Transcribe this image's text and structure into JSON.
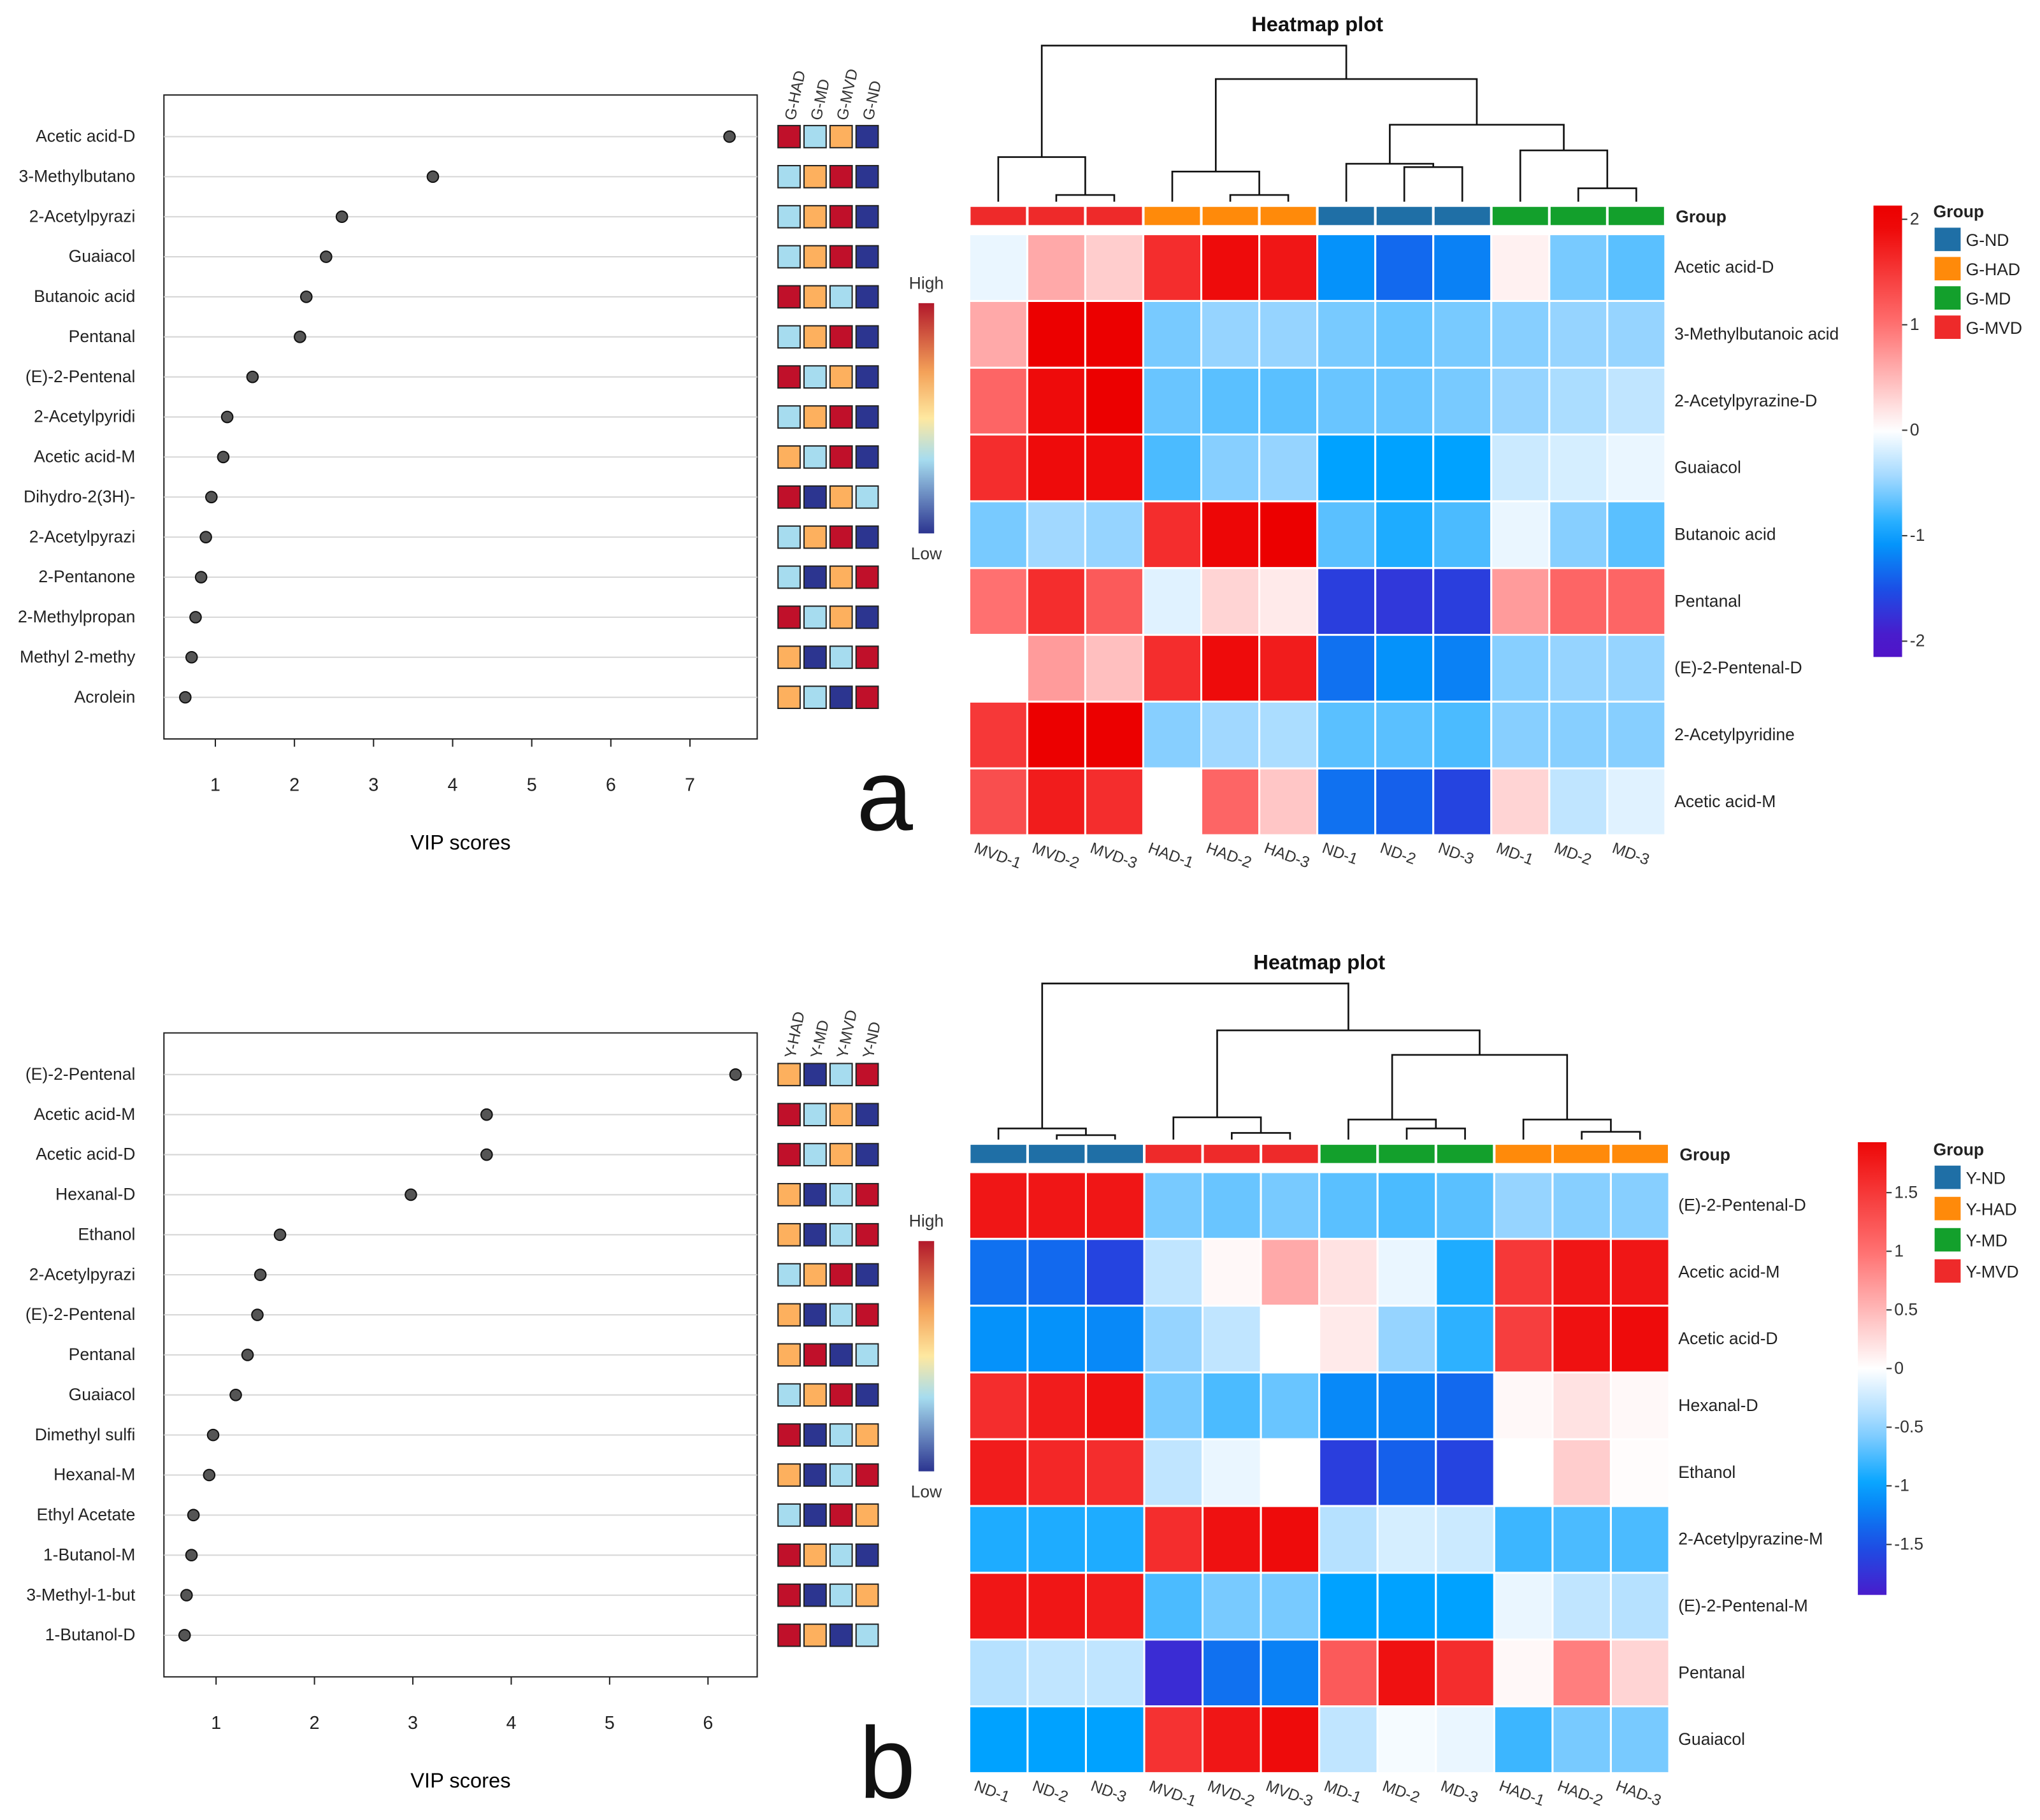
{
  "panel_labels": [
    "a",
    "b"
  ],
  "rank_colors": {
    "4": "#c0102a",
    "3": "#fdb05e",
    "2": "#a6dcef",
    "1": "#2c3590"
  },
  "chart_data": [
    {
      "type": "scatter",
      "name": "vip-a",
      "xlabel": "VIP scores",
      "xticks": [
        "1",
        "2",
        "3",
        "4",
        "5",
        "6",
        "7"
      ],
      "xlim": [
        0.35,
        7.85
      ],
      "features": [
        "Acetic acid-D",
        "3-Methylbutano",
        "2-Acetylpyrazi",
        "Guaiacol",
        "Butanoic acid",
        "Pentanal",
        "(E)-2-Pentenal",
        "2-Acetylpyridi",
        "Acetic acid-M",
        "Dihydro-2(3H)-",
        "2-Acetylpyrazi",
        "2-Pentanone",
        "2-Methylpropan",
        "Methyl 2-methy",
        "Acrolein"
      ],
      "values": [
        7.5,
        3.75,
        2.6,
        2.4,
        2.15,
        2.07,
        1.47,
        1.15,
        1.1,
        0.95,
        0.88,
        0.82,
        0.75,
        0.7,
        0.62
      ],
      "group_headers": [
        "G-HAD",
        "G-MD",
        "G-MVD",
        "G-ND"
      ],
      "group_ranks": [
        [
          4,
          2,
          3,
          1
        ],
        [
          2,
          3,
          4,
          1
        ],
        [
          2,
          3,
          4,
          1
        ],
        [
          2,
          3,
          4,
          1
        ],
        [
          4,
          3,
          2,
          1
        ],
        [
          2,
          3,
          4,
          1
        ],
        [
          4,
          2,
          3,
          1
        ],
        [
          2,
          3,
          4,
          1
        ],
        [
          3,
          2,
          4,
          1
        ],
        [
          4,
          1,
          3,
          2
        ],
        [
          2,
          3,
          4,
          1
        ],
        [
          2,
          1,
          3,
          4
        ],
        [
          4,
          2,
          3,
          1
        ],
        [
          3,
          1,
          2,
          4
        ],
        [
          3,
          2,
          1,
          4
        ]
      ],
      "rank_legend": {
        "high": "High",
        "low": "Low"
      }
    },
    {
      "type": "heatmap",
      "name": "heatmap-a",
      "title": "Heatmap plot",
      "columns": [
        "MVD-1",
        "MVD-2",
        "MVD-3",
        "HAD-1",
        "HAD-2",
        "HAD-3",
        "ND-1",
        "ND-2",
        "ND-3",
        "MD-1",
        "MD-2",
        "MD-3"
      ],
      "column_groups": [
        "G-MVD",
        "G-MVD",
        "G-MVD",
        "G-HAD",
        "G-HAD",
        "G-HAD",
        "G-ND",
        "G-ND",
        "G-ND",
        "G-MD",
        "G-MD",
        "G-MD"
      ],
      "group_bar_label": "Group",
      "rows": [
        "Acetic acid-D",
        "3-Methylbutanoic acid",
        "2-Acetylpyrazine-D",
        "Guaiacol",
        "Butanoic acid",
        "Pentanal",
        "(E)-2-Pentenal-D",
        "2-Acetylpyridine",
        "Acetic acid-M"
      ],
      "values": [
        [
          -0.1,
          0.6,
          0.35,
          1.6,
          1.9,
          1.8,
          -1.1,
          -1.35,
          -1.2,
          0.1,
          -0.6,
          -0.7
        ],
        [
          0.6,
          2.0,
          2.0,
          -0.6,
          -0.5,
          -0.5,
          -0.6,
          -0.65,
          -0.6,
          -0.55,
          -0.5,
          -0.5
        ],
        [
          1.1,
          1.9,
          2.0,
          -0.65,
          -0.7,
          -0.7,
          -0.65,
          -0.65,
          -0.6,
          -0.5,
          -0.4,
          -0.3
        ],
        [
          1.6,
          1.9,
          1.9,
          -0.75,
          -0.55,
          -0.5,
          -1.0,
          -1.0,
          -1.0,
          -0.25,
          -0.2,
          -0.1
        ],
        [
          -0.6,
          -0.45,
          -0.5,
          1.6,
          1.95,
          2.0,
          -0.7,
          -0.9,
          -0.75,
          -0.1,
          -0.55,
          -0.7
        ],
        [
          1.0,
          1.6,
          1.2,
          -0.15,
          0.3,
          0.15,
          -1.65,
          -1.7,
          -1.65,
          0.7,
          1.1,
          1.1
        ],
        [
          0.0,
          0.7,
          0.45,
          1.6,
          1.9,
          1.75,
          -1.3,
          -1.1,
          -1.2,
          -0.55,
          -0.5,
          -0.5
        ],
        [
          1.5,
          2.0,
          2.0,
          -0.55,
          -0.45,
          -0.4,
          -0.7,
          -0.7,
          -0.75,
          -0.55,
          -0.55,
          -0.55
        ],
        [
          1.3,
          1.75,
          1.6,
          0.0,
          1.1,
          0.4,
          -1.3,
          -1.4,
          -1.6,
          0.3,
          -0.3,
          -0.15
        ]
      ],
      "colorbar_range": [
        -2.15,
        2.13
      ],
      "colorbar_ticks": [
        {
          "value": 2,
          "label": "2"
        },
        {
          "value": 1,
          "label": "1"
        },
        {
          "value": 0,
          "label": "0"
        },
        {
          "value": -1,
          "label": "-1"
        },
        {
          "value": -2,
          "label": "-2"
        }
      ],
      "group_legend": {
        "title": "Group",
        "items": [
          {
            "label": "G-ND",
            "color": "#1f6fa6"
          },
          {
            "label": "G-HAD",
            "color": "#ff8a0a"
          },
          {
            "label": "G-MD",
            "color": "#13a02c"
          },
          {
            "label": "G-MVD",
            "color": "#ee2a2a"
          }
        ]
      },
      "col_dendrogram": {
        "h": 7,
        "c": [
          {
            "h": 2.0,
            "c": [
              0,
              {
                "h": 0.3,
                "c": [
                  1,
                  2
                ]
              }
            ]
          },
          {
            "h": 5.5,
            "c": [
              {
                "h": 1.35,
                "c": [
                  3,
                  {
                    "h": 0.3,
                    "c": [
                      4,
                      5
                    ]
                  }
                ]
              },
              {
                "h": 3.45,
                "c": [
                  {
                    "h": 1.7,
                    "c": [
                      6,
                      {
                        "h": 1.55,
                        "c": [
                          7,
                          8
                        ]
                      }
                    ]
                  },
                  {
                    "h": 2.3,
                    "c": [
                      9,
                      {
                        "h": 0.6,
                        "c": [
                          10,
                          11
                        ]
                      }
                    ]
                  }
                ]
              }
            ]
          }
        ]
      }
    },
    {
      "type": "scatter",
      "name": "vip-b",
      "xlabel": "VIP scores",
      "xticks": [
        "1",
        "2",
        "3",
        "4",
        "5",
        "6"
      ],
      "xlim": [
        0.47,
        6.5
      ],
      "features": [
        "(E)-2-Pentenal",
        "Acetic acid-M",
        "Acetic acid-D",
        "Hexanal-D",
        "Ethanol",
        "2-Acetylpyrazi",
        "(E)-2-Pentenal",
        "Pentanal",
        "Guaiacol",
        "Dimethyl sulfi",
        "Hexanal-M",
        "Ethyl Acetate",
        "1-Butanol-M",
        "3-Methyl-1-but",
        "1-Butanol-D"
      ],
      "values": [
        6.28,
        3.75,
        3.75,
        2.98,
        1.65,
        1.45,
        1.42,
        1.32,
        1.2,
        0.97,
        0.93,
        0.77,
        0.75,
        0.7,
        0.68
      ],
      "group_headers": [
        "Y-HAD",
        "Y-MD",
        "Y-MVD",
        "Y-ND"
      ],
      "group_ranks": [
        [
          3,
          1,
          2,
          4
        ],
        [
          4,
          2,
          3,
          1
        ],
        [
          4,
          2,
          3,
          1
        ],
        [
          3,
          1,
          2,
          4
        ],
        [
          3,
          1,
          2,
          4
        ],
        [
          2,
          3,
          4,
          1
        ],
        [
          3,
          1,
          2,
          4
        ],
        [
          3,
          4,
          1,
          2
        ],
        [
          2,
          3,
          4,
          1
        ],
        [
          4,
          1,
          2,
          3
        ],
        [
          3,
          1,
          2,
          4
        ],
        [
          2,
          1,
          4,
          3
        ],
        [
          4,
          3,
          2,
          1
        ],
        [
          4,
          1,
          2,
          3
        ],
        [
          4,
          3,
          1,
          2
        ]
      ],
      "rank_legend": {
        "high": "High",
        "low": "Low"
      }
    },
    {
      "type": "heatmap",
      "name": "heatmap-b",
      "title": "Heatmap plot",
      "columns": [
        "ND-1",
        "ND-2",
        "ND-3",
        "MVD-1",
        "MVD-2",
        "MVD-3",
        "MD-1",
        "MD-2",
        "MD-3",
        "HAD-1",
        "HAD-2",
        "HAD-3"
      ],
      "column_groups": [
        "Y-ND",
        "Y-ND",
        "Y-ND",
        "Y-MVD",
        "Y-MVD",
        "Y-MVD",
        "Y-MD",
        "Y-MD",
        "Y-MD",
        "Y-HAD",
        "Y-HAD",
        "Y-HAD"
      ],
      "group_bar_label": "Group",
      "rows": [
        "(E)-2-Pentenal-D",
        "Acetic acid-M",
        "Acetic acid-D",
        "Hexanal-D",
        "Ethanol",
        "2-Acetylpyrazine-M",
        "(E)-2-Pentenal-M",
        "Pentanal",
        "Guaiacol"
      ],
      "values": [
        [
          1.8,
          1.8,
          1.8,
          -0.6,
          -0.65,
          -0.6,
          -0.7,
          -0.75,
          -0.7,
          -0.5,
          -0.55,
          -0.55
        ],
        [
          -1.3,
          -1.35,
          -1.6,
          -0.3,
          0.05,
          0.6,
          0.2,
          -0.1,
          -0.9,
          1.5,
          1.8,
          1.8
        ],
        [
          -1.1,
          -1.1,
          -1.15,
          -0.5,
          -0.3,
          0.0,
          0.15,
          -0.5,
          -0.85,
          1.45,
          1.85,
          1.9
        ],
        [
          1.6,
          1.75,
          1.85,
          -0.6,
          -0.75,
          -0.65,
          -1.15,
          -1.2,
          -1.35,
          0.05,
          0.2,
          0.05
        ],
        [
          1.75,
          1.65,
          1.6,
          -0.3,
          -0.1,
          0.0,
          -1.65,
          -1.4,
          -1.6,
          0.0,
          0.35,
          0.02
        ],
        [
          -0.9,
          -0.9,
          -0.9,
          1.6,
          1.85,
          1.9,
          -0.35,
          -0.2,
          -0.25,
          -0.8,
          -0.75,
          -0.75
        ],
        [
          1.8,
          1.8,
          1.75,
          -0.75,
          -0.6,
          -0.6,
          -1.0,
          -1.0,
          -1.0,
          -0.1,
          -0.3,
          -0.35
        ],
        [
          -0.35,
          -0.3,
          -0.3,
          -1.8,
          -1.3,
          -1.2,
          1.2,
          1.85,
          1.6,
          0.05,
          0.9,
          0.3
        ],
        [
          -1.0,
          -1.0,
          -1.0,
          1.55,
          1.8,
          1.9,
          -0.3,
          -0.05,
          -0.1,
          -0.8,
          -0.6,
          -0.6
        ]
      ],
      "colorbar_range": [
        -1.93,
        1.93
      ],
      "colorbar_ticks": [
        {
          "value": 1.5,
          "label": "1.5"
        },
        {
          "value": 1,
          "label": "1"
        },
        {
          "value": 0.5,
          "label": "0.5"
        },
        {
          "value": 0,
          "label": "0"
        },
        {
          "value": -0.5,
          "label": "-0.5"
        },
        {
          "value": -1,
          "label": "-1"
        },
        {
          "value": -1.5,
          "label": "-1.5"
        }
      ],
      "group_legend": {
        "title": "Group",
        "items": [
          {
            "label": "Y-ND",
            "color": "#1f6fa6"
          },
          {
            "label": "Y-HAD",
            "color": "#ff8a0a"
          },
          {
            "label": "Y-MD",
            "color": "#13a02c"
          },
          {
            "label": "Y-MVD",
            "color": "#ee2a2a"
          }
        ]
      },
      "col_dendrogram": {
        "h": 7,
        "c": [
          {
            "h": 0.5,
            "c": [
              0,
              {
                "h": 0.2,
                "c": [
                  1,
                  2
                ]
              }
            ]
          },
          {
            "h": 4.9,
            "c": [
              {
                "h": 1.0,
                "c": [
                  3,
                  {
                    "h": 0.3,
                    "c": [
                      4,
                      5
                    ]
                  }
                ]
              },
              {
                "h": 3.8,
                "c": [
                  {
                    "h": 0.9,
                    "c": [
                      6,
                      {
                        "h": 0.5,
                        "c": [
                          7,
                          8
                        ]
                      }
                    ]
                  },
                  {
                    "h": 0.9,
                    "c": [
                      9,
                      {
                        "h": 0.35,
                        "c": [
                          10,
                          11
                        ]
                      }
                    ]
                  }
                ]
              }
            ]
          }
        ]
      }
    }
  ]
}
